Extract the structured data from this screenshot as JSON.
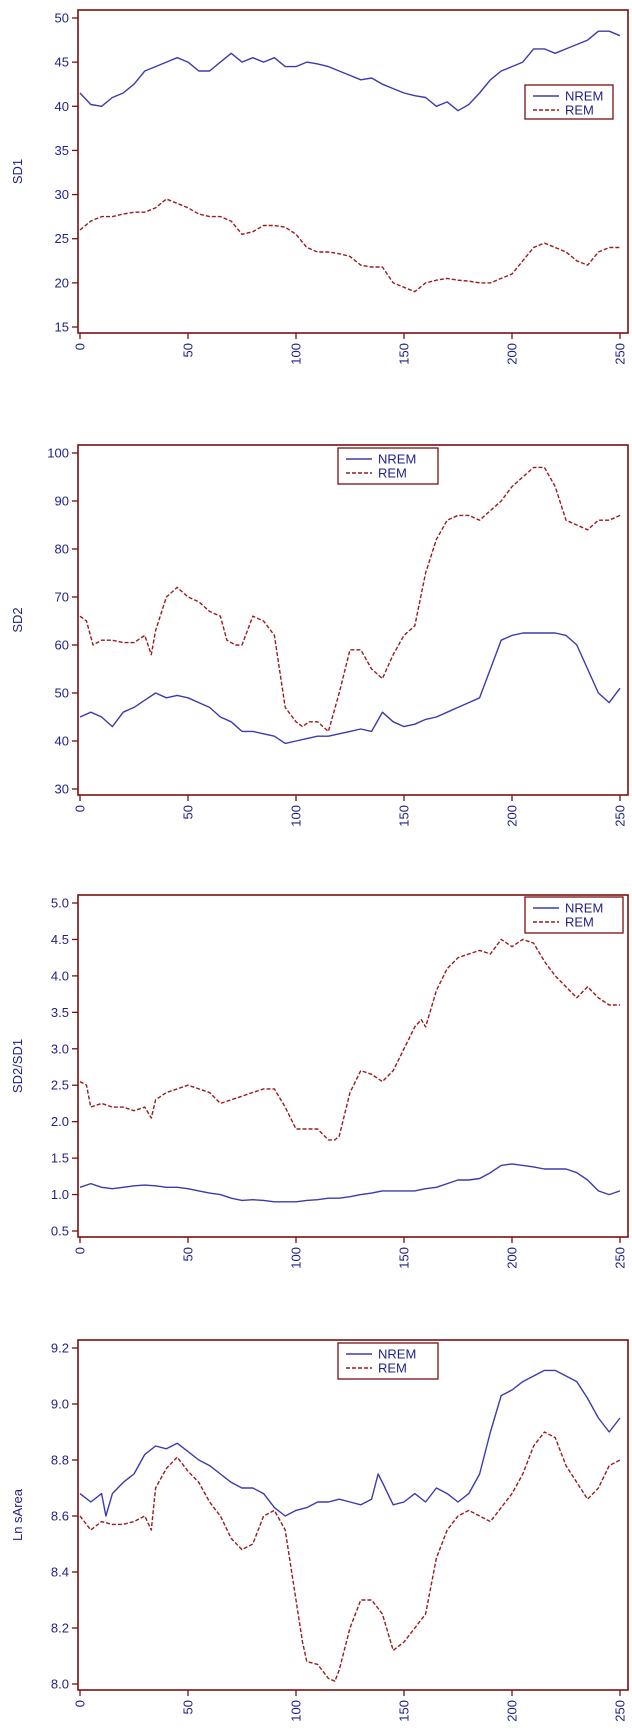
{
  "colors": {
    "frame": "#7a1010",
    "axis_text": "#1f1f8a",
    "nrem": "#3b3bb0",
    "rem": "#9b1b1b"
  },
  "chart_data": [
    {
      "type": "line",
      "ylabel": "SD1",
      "xlabel": "",
      "xlim": [
        0,
        250
      ],
      "ylim": [
        15,
        50
      ],
      "xticks": [
        0,
        50,
        100,
        150,
        200,
        250
      ],
      "yticks": [
        15,
        20,
        25,
        30,
        35,
        40,
        45,
        50
      ],
      "legend_position": "right",
      "series": [
        {
          "name": "NREM",
          "style": "solid",
          "x": [
            0,
            5,
            10,
            15,
            20,
            25,
            30,
            35,
            40,
            45,
            50,
            55,
            60,
            65,
            70,
            75,
            80,
            85,
            90,
            95,
            100,
            105,
            110,
            115,
            120,
            125,
            130,
            135,
            140,
            145,
            150,
            155,
            160,
            165,
            170,
            175,
            180,
            185,
            190,
            195,
            200,
            205,
            210,
            215,
            220,
            225,
            230,
            235,
            240,
            245,
            250
          ],
          "values": [
            41.5,
            40.2,
            40,
            41,
            41.5,
            42.5,
            44,
            44.5,
            45,
            45.5,
            45,
            44,
            44,
            45,
            46,
            45,
            45.5,
            45,
            45.5,
            44.5,
            44.5,
            45,
            44.8,
            44.5,
            44,
            43.5,
            43,
            43.2,
            42.5,
            42,
            41.5,
            41.2,
            41,
            40,
            40.5,
            39.5,
            40.2,
            41.5,
            43,
            44,
            44.5,
            45,
            46.5,
            46.5,
            46,
            46.5,
            47,
            47.5,
            48.5,
            48.5,
            48
          ]
        },
        {
          "name": "REM",
          "style": "dashed",
          "x": [
            0,
            5,
            10,
            15,
            20,
            25,
            30,
            35,
            40,
            45,
            50,
            55,
            60,
            65,
            70,
            75,
            80,
            85,
            90,
            95,
            100,
            105,
            110,
            115,
            120,
            125,
            130,
            135,
            140,
            145,
            150,
            155,
            160,
            165,
            170,
            175,
            180,
            185,
            190,
            195,
            200,
            205,
            210,
            215,
            220,
            225,
            230,
            235,
            240,
            245,
            250
          ],
          "values": [
            26,
            27,
            27.5,
            27.5,
            27.8,
            28,
            28,
            28.5,
            29.5,
            29,
            28.5,
            27.8,
            27.5,
            27.5,
            27,
            25.5,
            25.8,
            26.5,
            26.5,
            26.3,
            25.5,
            24,
            23.5,
            23.5,
            23.3,
            23,
            22,
            21.8,
            21.8,
            20,
            19.5,
            19,
            20,
            20.3,
            20.5,
            20.3,
            20.2,
            20,
            20,
            20.5,
            21,
            22.5,
            24,
            24.5,
            24,
            23.5,
            22.5,
            22,
            23.5,
            24,
            24
          ]
        }
      ]
    },
    {
      "type": "line",
      "ylabel": "SD2",
      "xlabel": "",
      "xlim": [
        0,
        250
      ],
      "ylim": [
        30,
        100
      ],
      "xticks": [
        0,
        50,
        100,
        150,
        200,
        250
      ],
      "yticks": [
        30,
        40,
        50,
        60,
        70,
        80,
        90,
        100
      ],
      "legend_position": "top-center",
      "series": [
        {
          "name": "NREM",
          "style": "solid",
          "x": [
            0,
            5,
            10,
            15,
            20,
            25,
            30,
            35,
            40,
            45,
            50,
            55,
            60,
            65,
            70,
            75,
            80,
            85,
            90,
            95,
            100,
            105,
            110,
            115,
            120,
            125,
            130,
            135,
            140,
            145,
            150,
            155,
            160,
            165,
            170,
            175,
            180,
            185,
            190,
            195,
            200,
            205,
            210,
            215,
            220,
            225,
            230,
            235,
            240,
            245,
            250
          ],
          "values": [
            45,
            46,
            45,
            43,
            46,
            47,
            48.5,
            50,
            49,
            49.5,
            49,
            48,
            47,
            45,
            44,
            42,
            42,
            41.5,
            41,
            39.5,
            40,
            40.5,
            41,
            41,
            41.5,
            42,
            42.5,
            42,
            46,
            44,
            43,
            43.5,
            44.5,
            45,
            46,
            47,
            48,
            49,
            55,
            61,
            62,
            62.5,
            62.5,
            62.5,
            62.5,
            62,
            60,
            55,
            50,
            48,
            51
          ]
        },
        {
          "name": "REM",
          "style": "dashed",
          "x": [
            0,
            3,
            6,
            10,
            15,
            20,
            25,
            30,
            33,
            35,
            40,
            45,
            50,
            55,
            60,
            65,
            68,
            72,
            75,
            80,
            85,
            90,
            95,
            100,
            103,
            106,
            110,
            115,
            120,
            125,
            130,
            135,
            140,
            145,
            150,
            155,
            160,
            165,
            170,
            175,
            180,
            185,
            190,
            195,
            200,
            205,
            210,
            215,
            220,
            225,
            230,
            235,
            240,
            245,
            250
          ],
          "values": [
            66,
            65,
            60,
            61,
            61,
            60.5,
            60.5,
            62,
            58,
            63,
            70,
            72,
            70,
            69,
            67,
            66,
            61,
            60,
            60,
            66,
            65,
            62,
            47,
            44,
            43,
            44,
            44,
            42,
            50,
            59,
            59,
            55,
            53,
            58,
            62,
            64,
            75,
            82,
            86,
            87,
            87,
            86,
            88,
            90,
            93,
            95,
            97,
            97,
            93,
            86,
            85,
            84,
            86,
            86,
            87
          ]
        }
      ]
    },
    {
      "type": "line",
      "ylabel": "SD2/SD1",
      "xlabel": "",
      "xlim": [
        0,
        250
      ],
      "ylim": [
        0.5,
        5.0
      ],
      "xticks": [
        0,
        50,
        100,
        150,
        200,
        250
      ],
      "yticks": [
        0.5,
        1.0,
        1.5,
        2.0,
        2.5,
        3.0,
        3.5,
        4.0,
        4.5,
        5.0
      ],
      "ytick_labels": [
        "0.5",
        "1.0",
        "1.5",
        "2.0",
        "2.5",
        "3.0",
        "3.5",
        "4.0",
        "4.5",
        "5.0"
      ],
      "legend_position": "top-right",
      "series": [
        {
          "name": "NREM",
          "style": "solid",
          "x": [
            0,
            5,
            10,
            15,
            20,
            25,
            30,
            35,
            40,
            45,
            50,
            55,
            60,
            65,
            70,
            75,
            80,
            85,
            90,
            95,
            100,
            105,
            110,
            115,
            120,
            125,
            130,
            135,
            140,
            145,
            150,
            155,
            160,
            165,
            170,
            175,
            180,
            185,
            190,
            195,
            200,
            205,
            210,
            215,
            220,
            225,
            230,
            235,
            240,
            245,
            250
          ],
          "values": [
            1.1,
            1.15,
            1.1,
            1.08,
            1.1,
            1.12,
            1.13,
            1.12,
            1.1,
            1.1,
            1.08,
            1.05,
            1.02,
            1.0,
            0.95,
            0.92,
            0.93,
            0.92,
            0.9,
            0.9,
            0.9,
            0.92,
            0.93,
            0.95,
            0.95,
            0.97,
            1.0,
            1.02,
            1.05,
            1.05,
            1.05,
            1.05,
            1.08,
            1.1,
            1.15,
            1.2,
            1.2,
            1.22,
            1.3,
            1.4,
            1.42,
            1.4,
            1.38,
            1.35,
            1.35,
            1.35,
            1.3,
            1.2,
            1.05,
            1.0,
            1.05
          ]
        },
        {
          "name": "REM",
          "style": "dashed",
          "x": [
            0,
            3,
            5,
            10,
            15,
            20,
            25,
            30,
            33,
            35,
            40,
            45,
            50,
            55,
            60,
            65,
            70,
            75,
            80,
            85,
            90,
            95,
            100,
            105,
            110,
            115,
            118,
            120,
            125,
            130,
            135,
            140,
            145,
            150,
            155,
            158,
            160,
            165,
            170,
            175,
            180,
            185,
            190,
            195,
            200,
            205,
            210,
            215,
            220,
            225,
            230,
            235,
            240,
            245,
            250
          ],
          "values": [
            2.55,
            2.5,
            2.2,
            2.25,
            2.2,
            2.2,
            2.15,
            2.2,
            2.05,
            2.3,
            2.4,
            2.45,
            2.5,
            2.45,
            2.4,
            2.25,
            2.3,
            2.35,
            2.4,
            2.45,
            2.45,
            2.2,
            1.9,
            1.9,
            1.9,
            1.75,
            1.75,
            1.8,
            2.4,
            2.7,
            2.65,
            2.55,
            2.7,
            3.0,
            3.3,
            3.4,
            3.3,
            3.8,
            4.1,
            4.25,
            4.3,
            4.35,
            4.3,
            4.5,
            4.4,
            4.5,
            4.45,
            4.2,
            4.0,
            3.85,
            3.7,
            3.85,
            3.7,
            3.6,
            3.6
          ]
        }
      ]
    },
    {
      "type": "line",
      "ylabel": "Ln sArea",
      "xlabel": "",
      "xlim": [
        0,
        250
      ],
      "ylim": [
        8.0,
        9.2
      ],
      "xticks": [
        0,
        50,
        100,
        150,
        200,
        250
      ],
      "yticks": [
        8.0,
        8.2,
        8.4,
        8.6,
        8.8,
        9.0,
        9.2
      ],
      "ytick_labels": [
        "8.0",
        "8.2",
        "8.4",
        "8.6",
        "8.8",
        "9.0",
        "9.2"
      ],
      "legend_position": "top-center",
      "series": [
        {
          "name": "NREM",
          "style": "solid",
          "x": [
            0,
            5,
            10,
            12,
            15,
            20,
            25,
            30,
            35,
            40,
            45,
            50,
            55,
            60,
            65,
            70,
            75,
            80,
            85,
            90,
            95,
            100,
            105,
            110,
            115,
            120,
            125,
            130,
            135,
            138,
            140,
            145,
            150,
            155,
            160,
            165,
            170,
            175,
            180,
            185,
            190,
            195,
            200,
            205,
            210,
            215,
            220,
            225,
            230,
            235,
            240,
            245,
            250
          ],
          "values": [
            8.68,
            8.65,
            8.68,
            8.6,
            8.68,
            8.72,
            8.75,
            8.82,
            8.85,
            8.84,
            8.86,
            8.83,
            8.8,
            8.78,
            8.75,
            8.72,
            8.7,
            8.7,
            8.68,
            8.63,
            8.6,
            8.62,
            8.63,
            8.65,
            8.65,
            8.66,
            8.65,
            8.64,
            8.66,
            8.75,
            8.72,
            8.64,
            8.65,
            8.68,
            8.65,
            8.7,
            8.68,
            8.65,
            8.68,
            8.75,
            8.9,
            9.03,
            9.05,
            9.08,
            9.1,
            9.12,
            9.12,
            9.1,
            9.08,
            9.02,
            8.95,
            8.9,
            8.95
          ]
        },
        {
          "name": "REM",
          "style": "dashed",
          "x": [
            0,
            3,
            5,
            10,
            15,
            20,
            25,
            30,
            33,
            35,
            40,
            45,
            50,
            55,
            60,
            65,
            70,
            75,
            80,
            85,
            90,
            95,
            100,
            103,
            105,
            110,
            115,
            118,
            120,
            125,
            130,
            135,
            140,
            145,
            150,
            155,
            160,
            165,
            170,
            175,
            180,
            185,
            190,
            195,
            200,
            205,
            210,
            215,
            220,
            225,
            230,
            235,
            240,
            245,
            250
          ],
          "values": [
            8.6,
            8.57,
            8.55,
            8.58,
            8.57,
            8.57,
            8.58,
            8.6,
            8.55,
            8.7,
            8.77,
            8.81,
            8.76,
            8.72,
            8.65,
            8.6,
            8.52,
            8.48,
            8.5,
            8.6,
            8.62,
            8.55,
            8.3,
            8.15,
            8.08,
            8.07,
            8.02,
            8.01,
            8.05,
            8.2,
            8.3,
            8.3,
            8.25,
            8.12,
            8.15,
            8.2,
            8.25,
            8.45,
            8.55,
            8.6,
            8.62,
            8.6,
            8.58,
            8.63,
            8.68,
            8.75,
            8.85,
            8.9,
            8.88,
            8.78,
            8.72,
            8.66,
            8.7,
            8.78,
            8.8
          ]
        }
      ]
    }
  ]
}
